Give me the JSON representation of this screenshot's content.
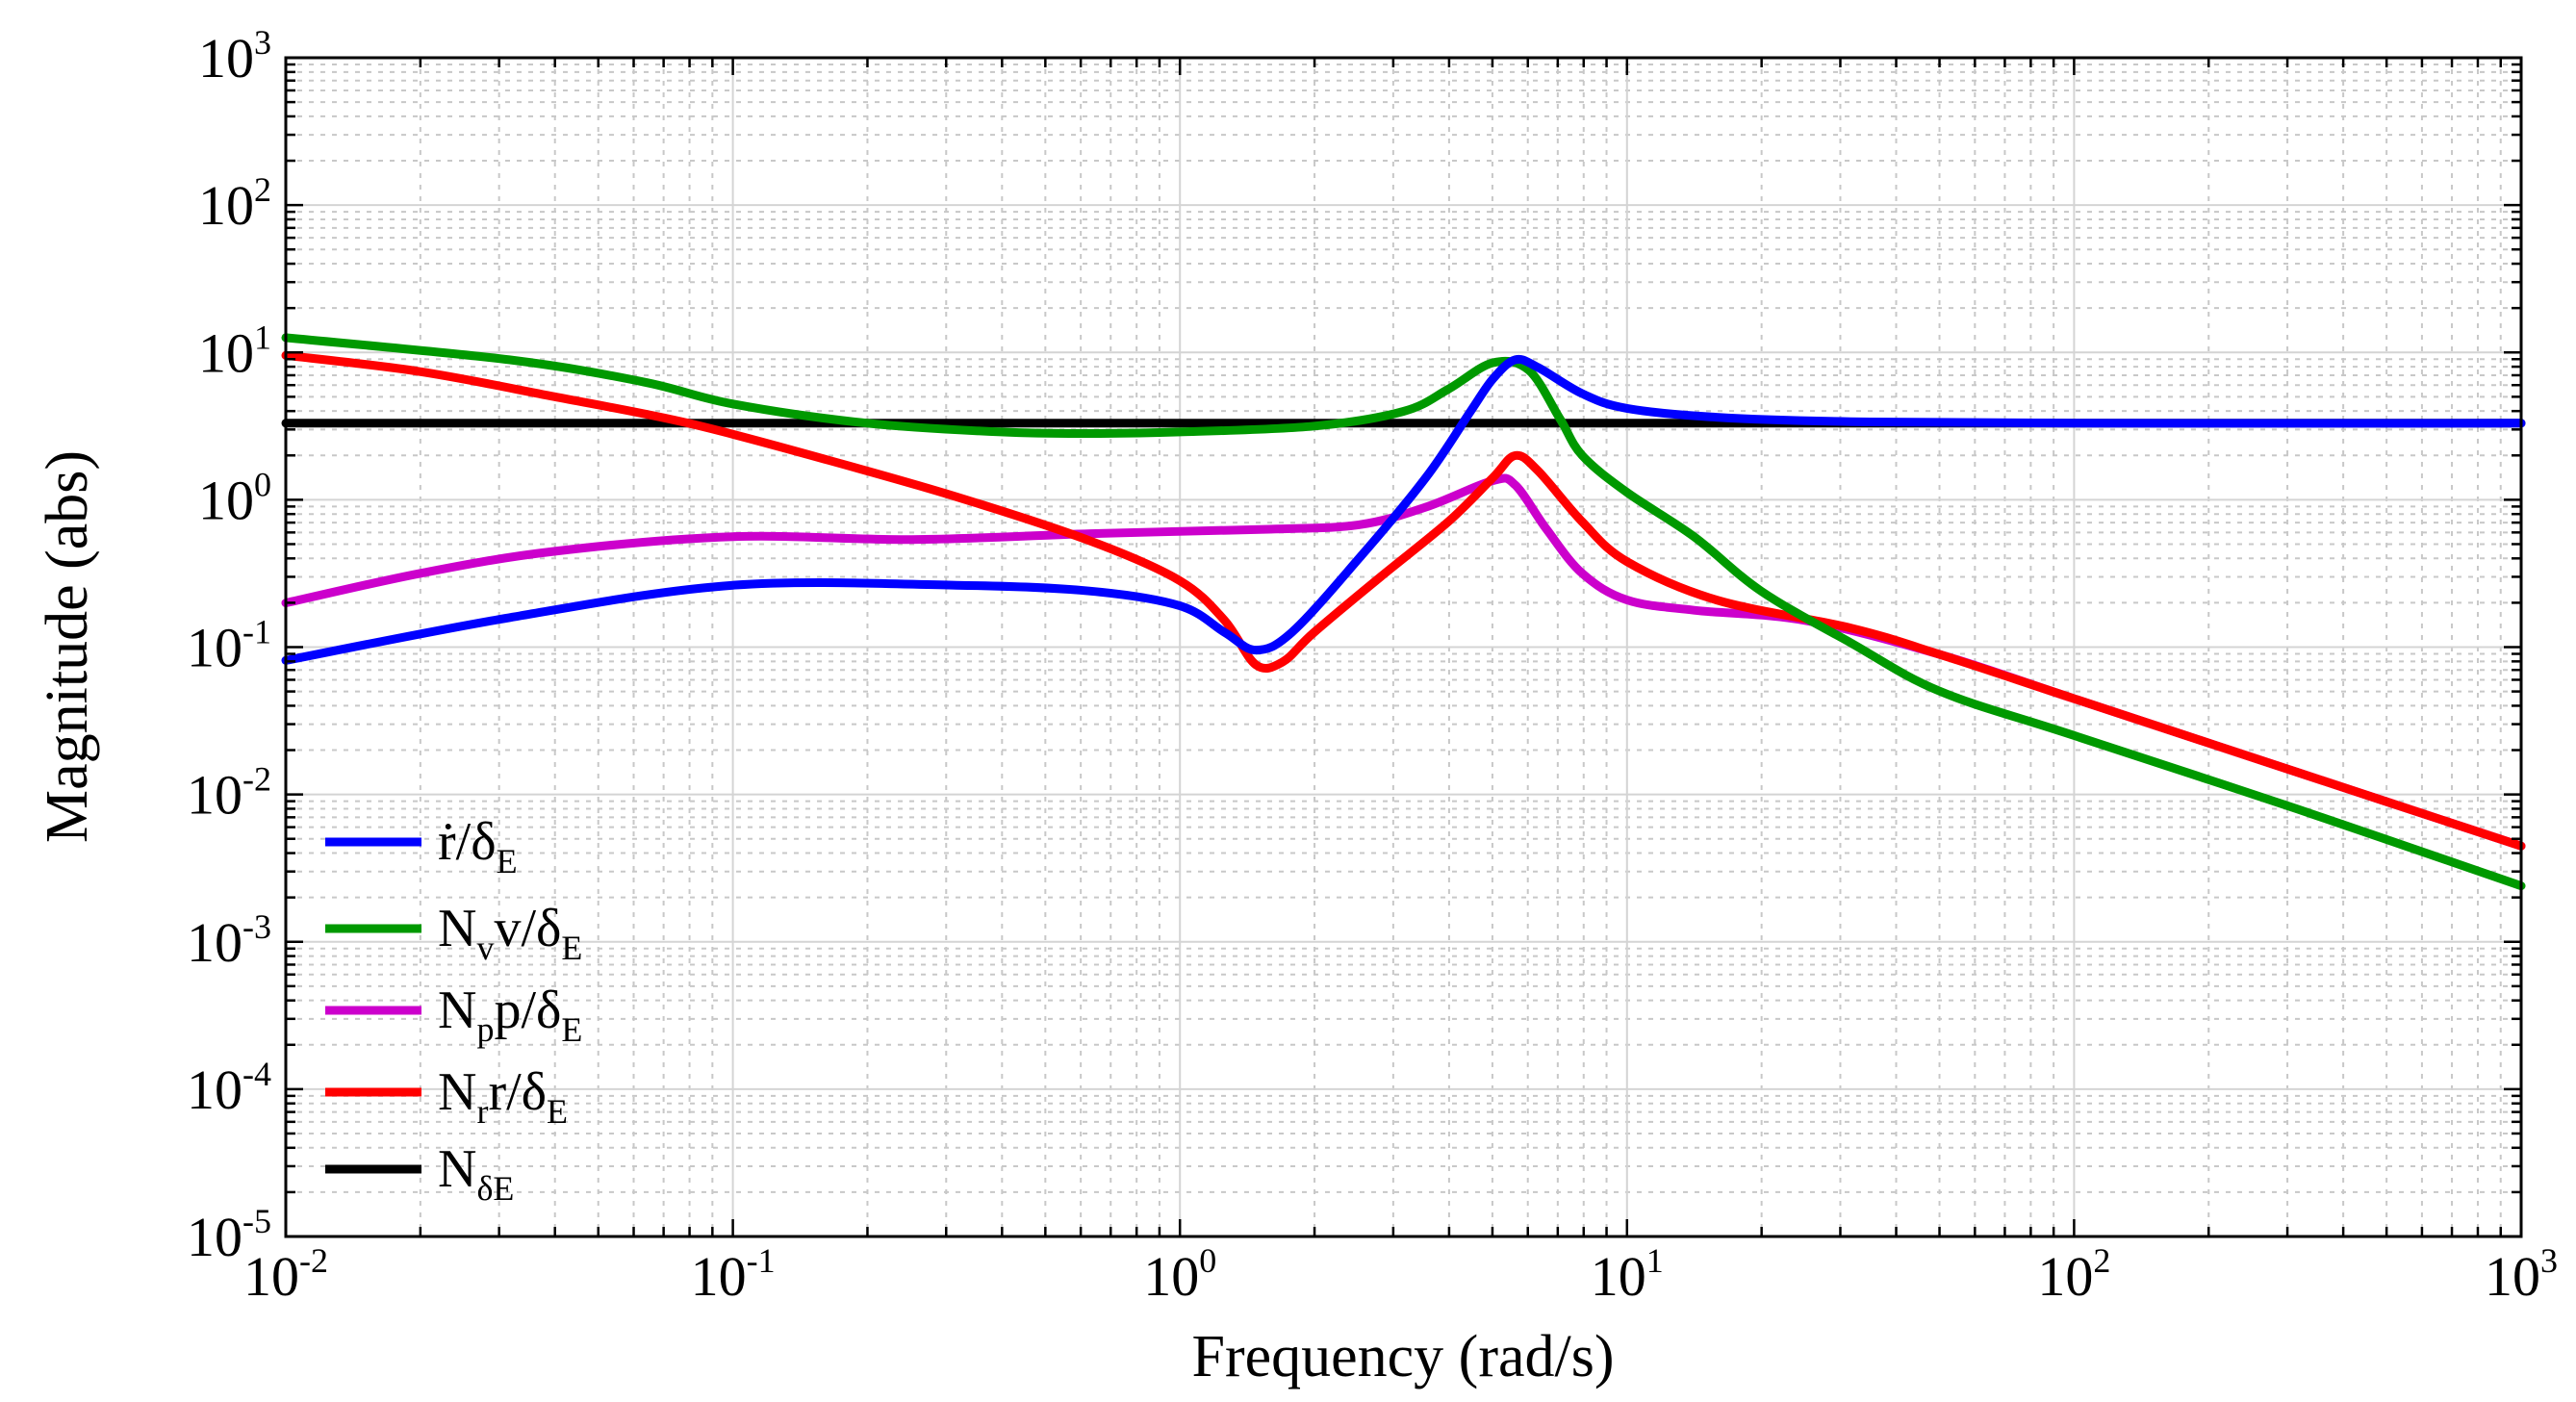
{
  "chart_data": {
    "type": "line",
    "title": "",
    "xlabel": "Frequency (rad/s)",
    "ylabel": "Magnitude (abs)",
    "xscale": "log",
    "yscale": "log",
    "xlim_exp": [
      -2,
      3
    ],
    "ylim_exp": [
      -5,
      3
    ],
    "xticks": [
      {
        "base": "10",
        "exp": "-2"
      },
      {
        "base": "10",
        "exp": "-1"
      },
      {
        "base": "10",
        "exp": "0"
      },
      {
        "base": "10",
        "exp": "1"
      },
      {
        "base": "10",
        "exp": "2"
      },
      {
        "base": "10",
        "exp": "3"
      }
    ],
    "yticks": [
      {
        "base": "10",
        "exp": "-5"
      },
      {
        "base": "10",
        "exp": "-4"
      },
      {
        "base": "10",
        "exp": "-3"
      },
      {
        "base": "10",
        "exp": "-2"
      },
      {
        "base": "10",
        "exp": "-1"
      },
      {
        "base": "10",
        "exp": "0"
      },
      {
        "base": "10",
        "exp": "1"
      },
      {
        "base": "10",
        "exp": "2"
      },
      {
        "base": "10",
        "exp": "3"
      }
    ],
    "grid": "major and minor",
    "legend_position": "lower-left",
    "series": [
      {
        "name": "r-dot-over-delta-E",
        "label_main": "ṙ/δ",
        "label_sub": "E",
        "label_tail": "",
        "color": "#0000ff",
        "points": [
          [
            -2,
            -1.09
          ],
          [
            -1.5,
            -0.8
          ],
          [
            -1,
            -0.58
          ],
          [
            -0.5,
            -0.58
          ],
          [
            -0.2,
            -0.62
          ],
          [
            0,
            -0.72
          ],
          [
            0.1,
            -0.9
          ],
          [
            0.17,
            -1.02
          ],
          [
            0.25,
            -0.9
          ],
          [
            0.4,
            -0.4
          ],
          [
            0.55,
            0.15
          ],
          [
            0.65,
            0.6
          ],
          [
            0.7,
            0.82
          ],
          [
            0.75,
            0.95
          ],
          [
            0.8,
            0.9
          ],
          [
            0.9,
            0.72
          ],
          [
            1.0,
            0.62
          ],
          [
            1.2,
            0.56
          ],
          [
            1.5,
            0.53
          ],
          [
            2,
            0.52
          ],
          [
            3,
            0.52
          ]
        ]
      },
      {
        "name": "Nv-v-over-delta-E",
        "label_main": "N",
        "label_sub": "v",
        "label_tail": "v/δ_E",
        "color": "#009900",
        "points": [
          [
            -2,
            1.1
          ],
          [
            -1.5,
            0.95
          ],
          [
            -1.2,
            0.8
          ],
          [
            -1,
            0.65
          ],
          [
            -0.7,
            0.52
          ],
          [
            -0.4,
            0.46
          ],
          [
            -0.2,
            0.45
          ],
          [
            0,
            0.46
          ],
          [
            0.3,
            0.5
          ],
          [
            0.5,
            0.6
          ],
          [
            0.6,
            0.75
          ],
          [
            0.7,
            0.93
          ],
          [
            0.78,
            0.88
          ],
          [
            0.85,
            0.55
          ],
          [
            0.9,
            0.3
          ],
          [
            1.0,
            0.05
          ],
          [
            1.15,
            -0.25
          ],
          [
            1.3,
            -0.62
          ],
          [
            1.5,
            -0.97
          ],
          [
            1.7,
            -1.3
          ],
          [
            2,
            -1.6
          ],
          [
            2.5,
            -2.1
          ],
          [
            3,
            -2.62
          ]
        ]
      },
      {
        "name": "Np-p-over-delta-E",
        "label_main": "N",
        "label_sub": "p",
        "label_tail": "p/δ_E",
        "color": "#cc00cc",
        "points": [
          [
            -2,
            -0.7
          ],
          [
            -1.7,
            -0.5
          ],
          [
            -1.4,
            -0.35
          ],
          [
            -1,
            -0.25
          ],
          [
            -0.6,
            -0.27
          ],
          [
            -0.2,
            -0.23
          ],
          [
            0.2,
            -0.2
          ],
          [
            0.4,
            -0.17
          ],
          [
            0.55,
            -0.05
          ],
          [
            0.7,
            0.13
          ],
          [
            0.75,
            0.1
          ],
          [
            0.82,
            -0.2
          ],
          [
            0.9,
            -0.5
          ],
          [
            1.0,
            -0.68
          ],
          [
            1.15,
            -0.75
          ],
          [
            1.4,
            -0.82
          ],
          [
            1.7,
            -1.05
          ],
          [
            2,
            -1.35
          ],
          [
            2.5,
            -1.85
          ],
          [
            3,
            -2.35
          ]
        ]
      },
      {
        "name": "Nr-r-over-delta-E",
        "label_main": "N",
        "label_sub": "r",
        "label_tail": "r/δ_E",
        "color": "#ff0000",
        "points": [
          [
            -2,
            0.98
          ],
          [
            -1.7,
            0.87
          ],
          [
            -1.4,
            0.7
          ],
          [
            -1.1,
            0.52
          ],
          [
            -0.8,
            0.28
          ],
          [
            -0.5,
            0.02
          ],
          [
            -0.2,
            -0.28
          ],
          [
            0,
            -0.55
          ],
          [
            0.1,
            -0.82
          ],
          [
            0.17,
            -1.12
          ],
          [
            0.23,
            -1.1
          ],
          [
            0.3,
            -0.9
          ],
          [
            0.45,
            -0.52
          ],
          [
            0.6,
            -0.15
          ],
          [
            0.7,
            0.15
          ],
          [
            0.75,
            0.3
          ],
          [
            0.8,
            0.2
          ],
          [
            0.9,
            -0.15
          ],
          [
            1.0,
            -0.42
          ],
          [
            1.2,
            -0.68
          ],
          [
            1.5,
            -0.87
          ],
          [
            1.7,
            -1.05
          ],
          [
            2,
            -1.35
          ],
          [
            2.5,
            -1.85
          ],
          [
            3,
            -2.35
          ]
        ]
      },
      {
        "name": "N-delta-E",
        "label_main": "N",
        "label_sub": "δE",
        "label_tail": "",
        "color": "#000000",
        "points": [
          [
            -2,
            0.52
          ],
          [
            3,
            0.52
          ]
        ]
      }
    ]
  }
}
